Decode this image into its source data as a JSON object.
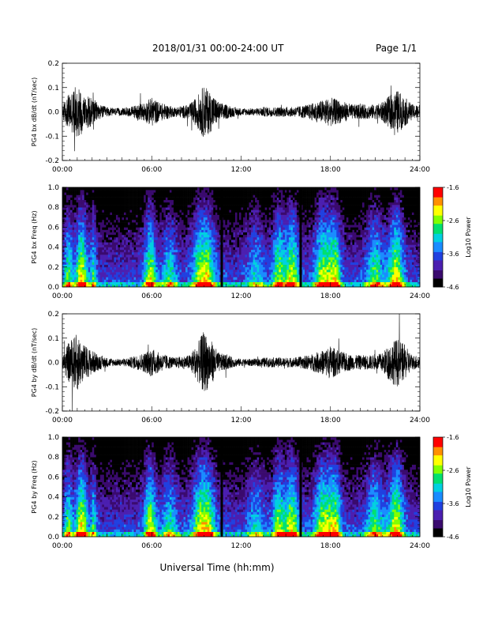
{
  "header": {
    "date_range": "2018/01/31  00:00-24:00 UT",
    "page": "Page 1/1"
  },
  "x_axis": {
    "label": "Universal Time (hh:mm)",
    "tick_labels": [
      "00:00",
      "06:00",
      "12:00",
      "18:00",
      "24:00"
    ]
  },
  "chart_data": [
    {
      "type": "line",
      "panel": "bx-waveform",
      "ylabel": "PG4 bx dB/dt (nT/sec)",
      "xlim": [
        0,
        24
      ],
      "ylim": [
        -0.2,
        0.2
      ],
      "yticks": [
        -0.2,
        -0.1,
        0.0,
        0.1,
        0.2
      ],
      "ytick_labels": [
        "-0.2",
        "-0.1",
        "0.0",
        "0.1",
        "0.2"
      ],
      "envelope": {
        "hours": [
          0,
          0.5,
          1.0,
          1.5,
          2.0,
          2.5,
          3.0,
          3.5,
          4.0,
          4.5,
          5.0,
          5.5,
          6.0,
          6.5,
          7.0,
          7.5,
          8.0,
          8.5,
          9.0,
          9.5,
          10.0,
          10.5,
          11.0,
          11.5,
          12.0,
          12.5,
          13.0,
          13.5,
          14.0,
          14.5,
          15.0,
          15.5,
          16.0,
          16.5,
          17.0,
          17.5,
          18.0,
          18.5,
          19.0,
          19.5,
          20.0,
          20.5,
          21.0,
          21.5,
          22.0,
          22.5,
          23.0,
          23.5,
          24.0
        ],
        "amplitude": [
          0.03,
          0.08,
          0.11,
          0.07,
          0.06,
          0.03,
          0.02,
          0.015,
          0.015,
          0.02,
          0.03,
          0.04,
          0.06,
          0.04,
          0.03,
          0.02,
          0.025,
          0.03,
          0.06,
          0.11,
          0.08,
          0.04,
          0.03,
          0.02,
          0.015,
          0.015,
          0.015,
          0.02,
          0.02,
          0.02,
          0.02,
          0.02,
          0.025,
          0.03,
          0.04,
          0.05,
          0.06,
          0.05,
          0.04,
          0.03,
          0.03,
          0.03,
          0.03,
          0.04,
          0.07,
          0.09,
          0.06,
          0.03,
          0.03
        ]
      }
    },
    {
      "type": "heatmap",
      "panel": "bx-spectrogram",
      "ylabel": "PG4 bx Freq (Hz)",
      "xlim": [
        0,
        24
      ],
      "ylim": [
        0.0,
        1.0
      ],
      "yticks": [
        0.0,
        0.2,
        0.4,
        0.6,
        0.8,
        1.0
      ],
      "ytick_labels": [
        "0.0",
        "0.2",
        "0.4",
        "0.6",
        "0.8",
        "1.0"
      ],
      "colorbar": {
        "label": "Log10 Power",
        "range": [
          -4.6,
          -1.6
        ],
        "tick_labels": [
          "-1.6",
          "-2.6",
          "-3.6",
          "-4.6"
        ]
      },
      "data_gaps_hours": [
        10.7,
        16.0
      ]
    },
    {
      "type": "line",
      "panel": "by-waveform",
      "ylabel": "PG4 by dB/dt (nT/sec)",
      "xlim": [
        0,
        24
      ],
      "ylim": [
        -0.2,
        0.2
      ],
      "yticks": [
        -0.2,
        -0.1,
        0.0,
        0.1,
        0.2
      ],
      "ytick_labels": [
        "-0.2",
        "-0.1",
        "0.0",
        "0.1",
        "0.2"
      ],
      "envelope": {
        "hours": [
          0,
          0.5,
          1.0,
          1.5,
          2.0,
          2.5,
          3.0,
          3.5,
          4.0,
          4.5,
          5.0,
          5.5,
          6.0,
          6.5,
          7.0,
          7.5,
          8.0,
          8.5,
          9.0,
          9.5,
          10.0,
          10.5,
          11.0,
          11.5,
          12.0,
          12.5,
          13.0,
          13.5,
          14.0,
          14.5,
          15.0,
          15.5,
          16.0,
          16.5,
          17.0,
          17.5,
          18.0,
          18.5,
          19.0,
          19.5,
          20.0,
          20.5,
          21.0,
          21.5,
          22.0,
          22.5,
          23.0,
          23.5,
          24.0
        ],
        "amplitude": [
          0.03,
          0.09,
          0.12,
          0.07,
          0.05,
          0.03,
          0.02,
          0.015,
          0.015,
          0.02,
          0.03,
          0.04,
          0.06,
          0.04,
          0.03,
          0.02,
          0.025,
          0.03,
          0.07,
          0.13,
          0.09,
          0.04,
          0.03,
          0.02,
          0.015,
          0.015,
          0.015,
          0.02,
          0.02,
          0.02,
          0.02,
          0.02,
          0.025,
          0.03,
          0.04,
          0.05,
          0.07,
          0.05,
          0.04,
          0.03,
          0.03,
          0.03,
          0.03,
          0.04,
          0.08,
          0.1,
          0.07,
          0.03,
          0.03
        ]
      }
    },
    {
      "type": "heatmap",
      "panel": "by-spectrogram",
      "ylabel": "PG4 by Freq (Hz)",
      "xlim": [
        0,
        24
      ],
      "ylim": [
        0.0,
        1.0
      ],
      "yticks": [
        0.0,
        0.2,
        0.4,
        0.6,
        0.8,
        1.0
      ],
      "ytick_labels": [
        "0.0",
        "0.2",
        "0.4",
        "0.6",
        "0.8",
        "1.0"
      ],
      "colorbar": {
        "label": "Log10 Power",
        "range": [
          -4.6,
          -1.6
        ],
        "tick_labels": [
          "-1.6",
          "-2.6",
          "-3.6",
          "-4.6"
        ]
      },
      "data_gaps_hours": [
        10.7,
        16.0
      ]
    }
  ],
  "colors": {
    "waveform": "#000000",
    "colormap": [
      "#000000",
      "#3a0a6e",
      "#4b1fb0",
      "#2040e0",
      "#1a8cff",
      "#00d0e0",
      "#00e070",
      "#80ff00",
      "#ffff00",
      "#ff9000",
      "#ff0000"
    ]
  }
}
